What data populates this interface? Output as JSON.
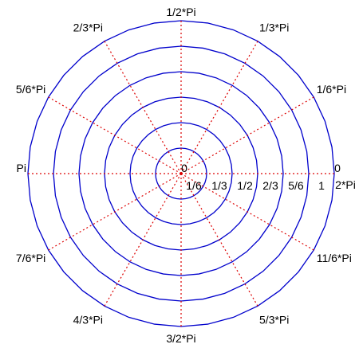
{
  "chart_data": {
    "type": "polar",
    "title": "",
    "circles": [
      {
        "radius": 0.1667,
        "label": "1/6"
      },
      {
        "radius": 0.3333,
        "label": "1/3"
      },
      {
        "radius": 0.5,
        "label": "1/2"
      },
      {
        "radius": 0.6667,
        "label": "2/3"
      },
      {
        "radius": 0.8333,
        "label": "5/6"
      },
      {
        "radius": 1.0,
        "label": "1"
      }
    ],
    "center_label": "0",
    "spokes": [
      {
        "angle_pi": 0,
        "label": "0",
        "label2": "2*Pi"
      },
      {
        "angle_pi": 0.1667,
        "label": "1/6*Pi"
      },
      {
        "angle_pi": 0.3333,
        "label": "1/3*Pi"
      },
      {
        "angle_pi": 0.5,
        "label": "1/2*Pi"
      },
      {
        "angle_pi": 0.6667,
        "label": "2/3*Pi"
      },
      {
        "angle_pi": 0.8333,
        "label": "5/6*Pi"
      },
      {
        "angle_pi": 1.0,
        "label": "Pi"
      },
      {
        "angle_pi": 1.1667,
        "label": "7/6*Pi"
      },
      {
        "angle_pi": 1.3333,
        "label": "4/3*Pi"
      },
      {
        "angle_pi": 1.5,
        "label": "3/2*Pi"
      },
      {
        "angle_pi": 1.6667,
        "label": "5/3*Pi"
      },
      {
        "angle_pi": 1.8333,
        "label": "11/6*Pi"
      }
    ],
    "rlim": [
      0,
      1
    ],
    "grid": true,
    "colors": {
      "circle": "#0000cc",
      "spoke": "#dd0000",
      "text": "#000000"
    }
  }
}
